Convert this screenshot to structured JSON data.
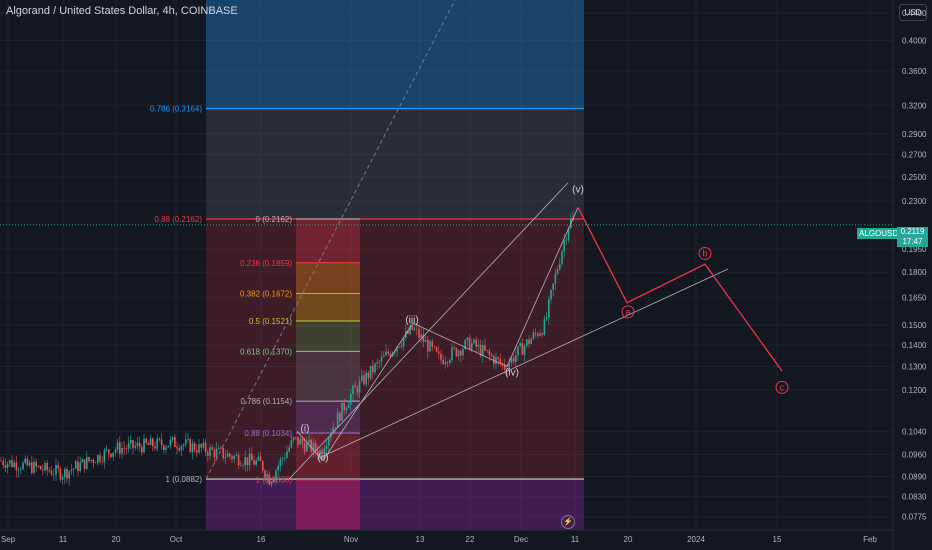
{
  "header": {
    "title": "Algorand / United States Dollar, 4h, COINBASE",
    "currency": "USD"
  },
  "last_price": {
    "symbol": "ALGOUSD",
    "value": "0.2119",
    "countdown": "17:47"
  },
  "colors": {
    "background": "#131722",
    "up": "#26a69a",
    "down": "#ef5350",
    "grid": "#1e222d",
    "axis_text": "#b2b5be",
    "forecast": "#f23645",
    "trend": "#b2b5be"
  },
  "chart_data": {
    "type": "candlestick",
    "symbol": "ALGOUSD",
    "interval": "4h",
    "exchange": "COINBASE",
    "y_scale": "log",
    "ylim": [
      0.074,
      0.46
    ],
    "y_ticks": [
      "0.4400",
      "0.4000",
      "0.3600",
      "0.3200",
      "0.2900",
      "0.2700",
      "0.2500",
      "0.2300",
      "0.2119",
      "0.1950",
      "0.1800",
      "0.1650",
      "0.1500",
      "0.1400",
      "0.1300",
      "0.1200",
      "0.1040",
      "0.0960",
      "0.0890",
      "0.0830",
      "0.0775"
    ],
    "x_ticks": [
      "Sep",
      "11",
      "20",
      "Oct",
      "16",
      "Nov",
      "13",
      "22",
      "Dec",
      "11",
      "20",
      "2024",
      "15",
      "Feb"
    ],
    "price_path": [
      [
        "Sep",
        0.094
      ],
      [
        "11",
        0.09
      ],
      [
        "20",
        0.098
      ],
      [
        "Oct",
        0.1
      ],
      [
        "16",
        0.093
      ],
      [
        "17",
        0.088
      ],
      [
        "19",
        0.101
      ],
      [
        "22",
        0.097
      ],
      [
        "Nov",
        0.118
      ],
      [
        "13",
        0.148
      ],
      [
        "17",
        0.133
      ],
      [
        "22",
        0.141
      ],
      [
        "28",
        0.13
      ],
      [
        "Dec",
        0.15
      ],
      [
        "9",
        0.216
      ],
      [
        "11",
        0.2119
      ]
    ],
    "fib_left": [
      {
        "label": "0.786 (0.3164)",
        "value": 0.3164
      },
      {
        "label": "0.88 (0.2162)",
        "value": 0.2162
      },
      {
        "label": "1 (0.0882)",
        "value": 0.0882
      }
    ],
    "fib_right": [
      {
        "label": "0 (0.2162)",
        "value": 0.2162
      },
      {
        "label": "0.236 (0.1859)",
        "value": 0.1859
      },
      {
        "label": "0.382 (0.1672)",
        "value": 0.1672
      },
      {
        "label": "0.5 (0.1521)",
        "value": 0.1521
      },
      {
        "label": "0.618 (0.1370)",
        "value": 0.137
      },
      {
        "label": "0.786 (0.1154)",
        "value": 0.1154
      },
      {
        "label": "0.88 (0.1034)",
        "value": 0.1034
      },
      {
        "label": "1 (0.0880)",
        "value": 0.088
      }
    ],
    "wave_labels": [
      {
        "text": "(i)",
        "value": 0.104
      },
      {
        "text": "(ii)",
        "value": 0.094
      },
      {
        "text": "(iii)",
        "value": 0.151
      },
      {
        "text": "(iv)",
        "value": 0.126
      },
      {
        "text": "(v)",
        "value": 0.237
      },
      {
        "text": "a",
        "value": 0.157
      },
      {
        "text": "b",
        "value": 0.192
      },
      {
        "text": "c",
        "value": 0.121
      }
    ],
    "forecast_path": [
      0.225,
      0.162,
      0.185,
      0.128
    ],
    "grid": true
  }
}
